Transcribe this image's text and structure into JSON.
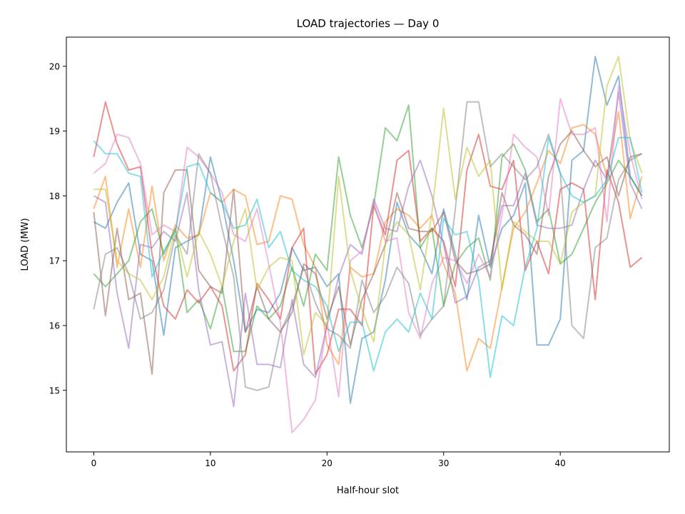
{
  "chart_data": {
    "type": "line",
    "title": "LOAD trajectories — Day 0",
    "xlabel": "Half-hour slot",
    "ylabel": "LOAD (MW)",
    "xlim": [
      -2.35,
      49.35
    ],
    "ylim": [
      14.05,
      20.45
    ],
    "xticks": [
      0,
      10,
      20,
      30,
      40
    ],
    "yticks": [
      15,
      16,
      17,
      18,
      19,
      20
    ],
    "grid": false,
    "legend": "none",
    "x": [
      0,
      1,
      2,
      3,
      4,
      5,
      6,
      7,
      8,
      9,
      10,
      11,
      12,
      13,
      14,
      15,
      16,
      17,
      18,
      19,
      20,
      21,
      22,
      23,
      24,
      25,
      26,
      27,
      28,
      29,
      30,
      31,
      32,
      33,
      34,
      35,
      36,
      37,
      38,
      39,
      40,
      41,
      42,
      43,
      44,
      45,
      46,
      47
    ],
    "series": [
      {
        "color": "#1f77b4",
        "values": [
          17.6,
          17.5,
          17.9,
          18.2,
          17.1,
          17.0,
          15.85,
          17.2,
          17.3,
          17.4,
          18.6,
          17.9,
          17.0,
          15.9,
          16.25,
          16.2,
          16.5,
          17.2,
          16.85,
          16.9,
          16.6,
          16.8,
          14.8,
          15.8,
          15.9,
          16.7,
          17.9,
          17.4,
          17.2,
          16.8,
          17.8,
          17.1,
          16.4,
          17.7,
          16.9,
          17.5,
          17.7,
          18.2,
          15.7,
          15.7,
          16.1,
          18.55,
          18.7,
          20.15,
          19.4,
          19.85,
          18.3,
          18.0
        ]
      },
      {
        "color": "#ff7f0e",
        "values": [
          17.8,
          18.3,
          16.9,
          17.8,
          16.9,
          18.15,
          17.0,
          17.55,
          17.35,
          17.4,
          18.05,
          17.9,
          18.1,
          18.0,
          17.25,
          17.3,
          18.0,
          17.95,
          17.25,
          16.9,
          15.7,
          15.4,
          16.9,
          16.75,
          16.8,
          17.6,
          17.8,
          17.7,
          17.5,
          17.7,
          16.95,
          16.5,
          15.3,
          15.8,
          15.65,
          16.6,
          17.5,
          17.75,
          18.2,
          18.7,
          18.5,
          19.05,
          19.1,
          18.95,
          18.3,
          19.3,
          17.65,
          18.3
        ]
      },
      {
        "color": "#2ca02c",
        "values": [
          16.8,
          16.6,
          16.8,
          17.0,
          17.6,
          17.8,
          17.1,
          17.5,
          16.2,
          16.4,
          15.95,
          16.6,
          15.6,
          15.6,
          16.3,
          16.1,
          16.3,
          16.9,
          16.3,
          17.1,
          16.85,
          18.6,
          17.7,
          17.2,
          17.85,
          19.05,
          18.85,
          19.4,
          17.2,
          17.5,
          16.3,
          16.95,
          17.2,
          17.35,
          16.7,
          18.6,
          18.8,
          18.4,
          17.6,
          17.8,
          16.95,
          17.1,
          17.5,
          17.9,
          18.2,
          18.55,
          18.3,
          18.0
        ]
      },
      {
        "color": "#d62728",
        "values": [
          18.6,
          19.45,
          18.8,
          18.4,
          18.45,
          17.1,
          16.3,
          16.1,
          16.55,
          16.35,
          16.6,
          16.3,
          15.3,
          15.55,
          16.65,
          16.4,
          16.1,
          17.2,
          17.5,
          15.25,
          15.55,
          16.25,
          16.25,
          16.0,
          17.85,
          17.4,
          18.55,
          18.7,
          17.3,
          17.5,
          17.3,
          16.6,
          18.4,
          18.95,
          18.15,
          18.1,
          18.55,
          16.85,
          17.3,
          16.8,
          18.1,
          18.2,
          18.1,
          16.4,
          18.4,
          17.9,
          16.9,
          17.05
        ]
      },
      {
        "color": "#9467bd",
        "values": [
          18.0,
          17.9,
          16.5,
          15.65,
          17.25,
          17.2,
          17.45,
          17.3,
          18.05,
          16.55,
          15.7,
          15.75,
          14.75,
          16.5,
          15.4,
          15.4,
          15.35,
          16.4,
          15.4,
          15.2,
          16.0,
          16.75,
          17.25,
          17.1,
          17.95,
          17.5,
          17.45,
          18.15,
          18.55,
          18.0,
          17.25,
          16.35,
          16.45,
          16.9,
          17.0,
          17.85,
          17.85,
          18.35,
          17.55,
          17.5,
          17.5,
          17.55,
          18.1,
          18.55,
          18.25,
          19.6,
          18.2,
          17.8
        ]
      },
      {
        "color": "#8c564b",
        "values": [
          17.75,
          16.15,
          17.5,
          16.4,
          16.5,
          15.25,
          18.05,
          18.4,
          18.4,
          16.85,
          16.6,
          16.5,
          18.1,
          15.9,
          16.6,
          16.1,
          15.9,
          16.2,
          16.95,
          16.8,
          16.1,
          16.6,
          15.7,
          16.4,
          16.8,
          17.25,
          18.05,
          17.5,
          17.45,
          17.45,
          17.75,
          17.0,
          16.8,
          16.85,
          16.95,
          18.05,
          17.55,
          17.4,
          17.1,
          18.3,
          18.8,
          19.0,
          18.7,
          18.45,
          18.6,
          18.0,
          18.6,
          18.65
        ]
      },
      {
        "color": "#e377c2",
        "values": [
          18.35,
          18.5,
          18.95,
          18.9,
          18.5,
          17.4,
          17.55,
          17.45,
          18.75,
          18.6,
          18.35,
          18.05,
          17.4,
          17.3,
          17.8,
          16.95,
          16.05,
          14.35,
          14.55,
          14.85,
          16.05,
          14.9,
          17.0,
          17.15,
          17.9,
          17.3,
          17.35,
          16.2,
          15.8,
          16.65,
          17.05,
          17.0,
          16.65,
          17.1,
          16.75,
          17.7,
          18.95,
          18.75,
          18.6,
          17.7,
          19.5,
          18.95,
          18.95,
          19.05,
          17.6,
          19.7,
          18.65,
          17.95
        ]
      },
      {
        "color": "#7f7f7f",
        "values": [
          16.25,
          17.1,
          17.2,
          16.8,
          16.1,
          16.2,
          16.55,
          17.4,
          17.1,
          18.65,
          18.35,
          17.5,
          16.75,
          15.05,
          15.0,
          15.05,
          15.9,
          16.3,
          16.9,
          16.35,
          15.95,
          15.85,
          15.65,
          16.7,
          16.2,
          16.45,
          16.9,
          16.65,
          15.85,
          16.1,
          16.3,
          17.8,
          19.45,
          19.45,
          18.45,
          18.65,
          18.45,
          18.25,
          18.45,
          18.95,
          18.35,
          16.0,
          15.8,
          17.2,
          17.35,
          18.25,
          18.55,
          18.65
        ]
      },
      {
        "color": "#bcbd22",
        "values": [
          18.1,
          18.1,
          17.0,
          16.8,
          16.7,
          16.4,
          16.75,
          17.5,
          16.75,
          17.45,
          17.1,
          16.6,
          17.3,
          17.8,
          16.55,
          16.9,
          17.05,
          17.0,
          15.55,
          16.2,
          16.0,
          18.3,
          16.85,
          16.25,
          15.75,
          17.25,
          17.6,
          17.4,
          16.55,
          17.75,
          19.35,
          17.95,
          18.75,
          18.3,
          18.55,
          16.55,
          17.6,
          17.45,
          17.3,
          17.3,
          16.95,
          17.75,
          17.9,
          18.0,
          19.7,
          20.15,
          18.85,
          18.35
        ]
      },
      {
        "color": "#17becf",
        "values": [
          18.85,
          18.65,
          18.65,
          18.35,
          18.3,
          16.75,
          17.15,
          17.45,
          18.45,
          18.5,
          18.05,
          17.9,
          17.5,
          17.55,
          17.95,
          17.2,
          17.45,
          16.85,
          16.7,
          16.6,
          16.3,
          15.6,
          16.05,
          16.05,
          15.3,
          15.9,
          16.1,
          15.9,
          16.5,
          16.1,
          17.65,
          17.4,
          17.45,
          16.7,
          15.2,
          16.15,
          16.0,
          16.9,
          17.5,
          18.9,
          18.35,
          18.0,
          17.9,
          18.0,
          18.25,
          18.9,
          18.9,
          18.05
        ]
      }
    ]
  }
}
